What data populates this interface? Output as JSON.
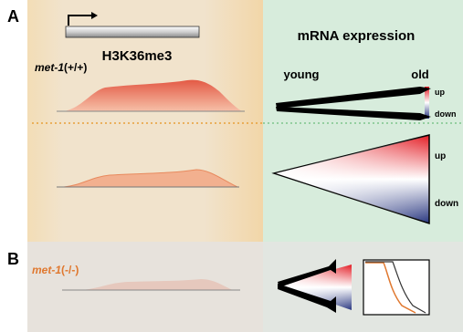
{
  "panel_a": {
    "letter": "A",
    "gene_mark": "H3K36me3",
    "expression_title": "mRNA expression",
    "genotype": {
      "gene": "met-1",
      "allele": "(+/+)"
    },
    "age_start": "young",
    "age_end": "old",
    "top_up": "up",
    "top_down": "down",
    "bottom_up": "up",
    "bottom_down": "down"
  },
  "panel_b": {
    "letter": "B",
    "genotype": {
      "gene": "met-1",
      "allele": "(-/-)"
    }
  }
}
